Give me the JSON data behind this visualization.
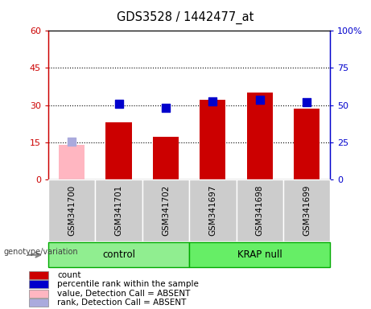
{
  "title": "GDS3528 / 1442477_at",
  "samples": [
    "GSM341700",
    "GSM341701",
    "GSM341702",
    "GSM341697",
    "GSM341698",
    "GSM341699"
  ],
  "group_labels": [
    "control",
    "KRAP null"
  ],
  "group_colors": [
    "#90EE90",
    "#66EE66"
  ],
  "bar_values": [
    14.0,
    23.0,
    17.0,
    32.0,
    35.0,
    28.5
  ],
  "bar_colors": [
    "#FFB6C1",
    "#CC0000",
    "#CC0000",
    "#CC0000",
    "#CC0000",
    "#CC0000"
  ],
  "dot_values": [
    25.5,
    51.0,
    48.0,
    52.5,
    53.5,
    52.0
  ],
  "dot_colors": [
    "#AAAADD",
    "#0000CC",
    "#0000CC",
    "#0000CC",
    "#0000CC",
    "#0000CC"
  ],
  "ylim_left": [
    0,
    60
  ],
  "ylim_right": [
    0,
    100
  ],
  "yticks_left": [
    0,
    15,
    30,
    45,
    60
  ],
  "ytick_labels_left": [
    "0",
    "15",
    "30",
    "45",
    "60"
  ],
  "yticks_right": [
    0,
    25,
    50,
    75,
    100
  ],
  "ytick_labels_right": [
    "0",
    "25",
    "50",
    "75",
    "100%"
  ],
  "left_axis_color": "#CC0000",
  "right_axis_color": "#0000CC",
  "legend_items": [
    {
      "label": "count",
      "color": "#CC0000"
    },
    {
      "label": "percentile rank within the sample",
      "color": "#0000CC"
    },
    {
      "label": "value, Detection Call = ABSENT",
      "color": "#FFB6C1"
    },
    {
      "label": "rank, Detection Call = ABSENT",
      "color": "#AAAADD"
    }
  ],
  "genotype_label": "genotype/variation",
  "dot_size": 50,
  "bar_width": 0.55,
  "cell_bg": "#CCCCCC",
  "grid_ticks": [
    15,
    30,
    45
  ]
}
